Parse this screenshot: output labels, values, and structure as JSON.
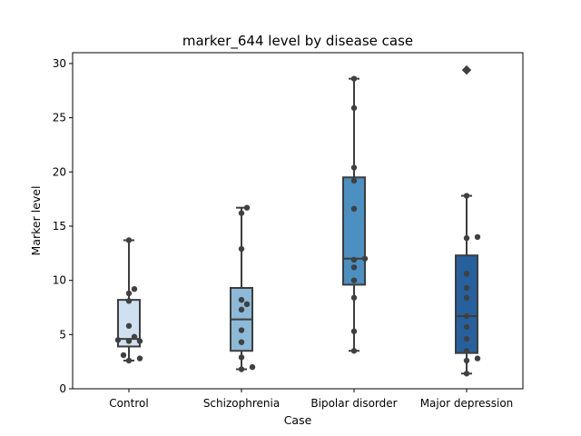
{
  "chart_data": {
    "type": "box",
    "title": "marker_644 level by disease case",
    "xlabel": "Case",
    "ylabel": "Marker level",
    "ylim": [
      0,
      31
    ],
    "yticks": [
      0,
      5,
      10,
      15,
      20,
      25,
      30
    ],
    "grid": false,
    "categories": [
      "Control",
      "Schizophrenia",
      "Bipolar disorder",
      "Major depression"
    ],
    "colors": [
      "#cfe0f1",
      "#8dbad9",
      "#4c8fc1",
      "#26619e"
    ],
    "boxes": [
      {
        "whisker_low": 2.6,
        "q1": 3.9,
        "median": 4.6,
        "q3": 8.2,
        "whisker_high": 13.7,
        "outliers": []
      },
      {
        "whisker_low": 1.8,
        "q1": 3.5,
        "median": 6.4,
        "q3": 9.3,
        "whisker_high": 16.7,
        "outliers": []
      },
      {
        "whisker_low": 3.5,
        "q1": 9.6,
        "median": 12.0,
        "q3": 19.5,
        "whisker_high": 28.6,
        "outliers": []
      },
      {
        "whisker_low": 1.4,
        "q1": 3.3,
        "median": 6.7,
        "q3": 12.3,
        "whisker_high": 17.8,
        "outliers": [
          29.4
        ]
      }
    ],
    "points": [
      [
        13.7,
        9.2,
        8.8,
        8.1,
        5.8,
        4.8,
        4.5,
        4.4,
        4.4,
        3.1,
        2.8,
        2.6
      ],
      [
        16.7,
        16.2,
        12.9,
        8.2,
        7.8,
        7.3,
        5.4,
        4.3,
        2.9,
        2.0,
        1.8
      ],
      [
        28.6,
        25.9,
        20.4,
        19.2,
        16.6,
        12.0,
        11.9,
        11.2,
        10.0,
        8.4,
        5.3,
        3.5
      ],
      [
        29.4,
        17.8,
        14.0,
        13.9,
        10.6,
        9.3,
        8.4,
        6.7,
        5.7,
        4.6,
        3.5,
        2.8,
        2.6,
        1.4
      ]
    ]
  }
}
